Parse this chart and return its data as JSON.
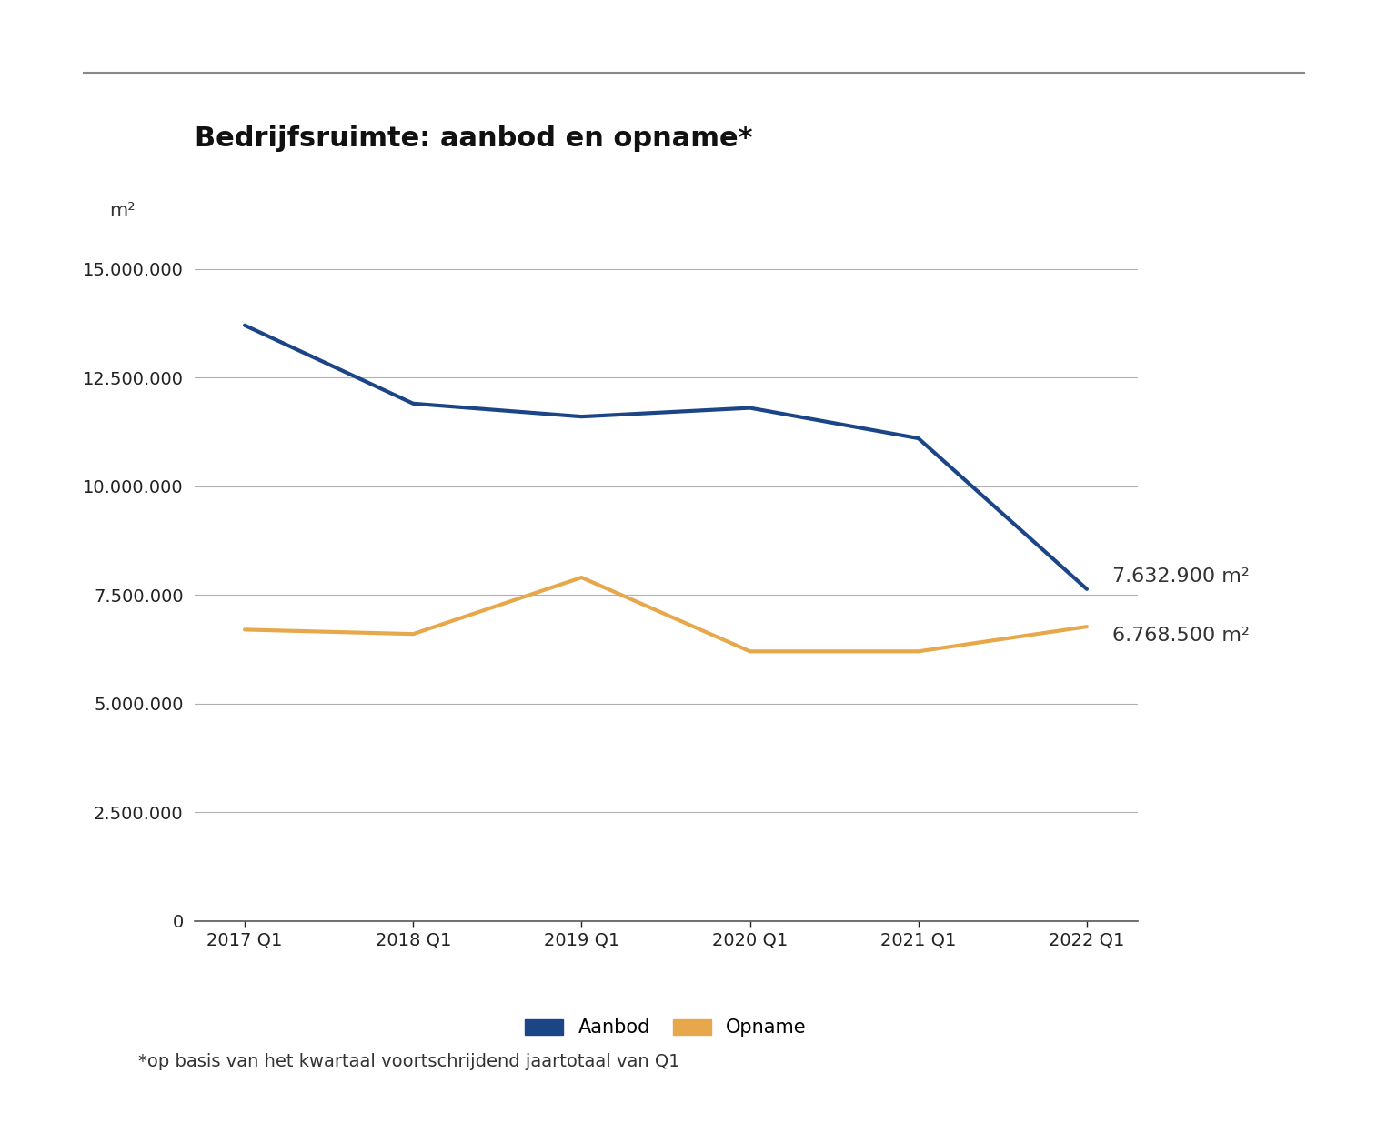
{
  "title": "Bedrijfsruimte: aanbod en opname*",
  "ylabel": "m²",
  "footnote": "*op basis van het kwartaal voortschrijdend jaartotaal van Q1",
  "x_labels": [
    "2017 Q1",
    "2018 Q1",
    "2019 Q1",
    "2020 Q1",
    "2021 Q1",
    "2022 Q1"
  ],
  "aanbod": [
    13700000,
    11900000,
    11600000,
    11800000,
    11100000,
    7632900
  ],
  "opname": [
    6700000,
    6600000,
    7900000,
    6200000,
    6200000,
    6768500
  ],
  "aanbod_color": "#1c4587",
  "opname_color": "#e6a84b",
  "aanbod_label": "Aanbod",
  "opname_label": "Opname",
  "aanbod_end_label": "7.632.900 m²",
  "opname_end_label": "6.768.500 m²",
  "ylim": [
    0,
    15500000
  ],
  "yticks": [
    0,
    2500000,
    5000000,
    7500000,
    10000000,
    12500000,
    15000000
  ],
  "background_color": "#ffffff",
  "grid_color": "#b0b0b0",
  "title_fontsize": 22,
  "label_fontsize": 15,
  "tick_fontsize": 14,
  "legend_fontsize": 15,
  "annotation_fontsize": 16
}
